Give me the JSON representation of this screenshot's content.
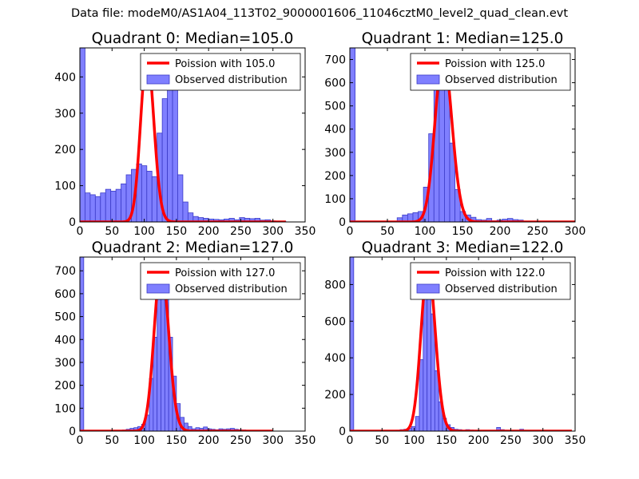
{
  "figure": {
    "title": "Data file: modeM0/AS1A04_113T02_9000001606_11046cztM0_level2_quad_clean.evt"
  },
  "colors": {
    "poisson_line": "#ff0000",
    "histogram_fill": "#7f7fff",
    "histogram_edge": "#3b3bc7",
    "axis": "#000000",
    "background": "#ffffff"
  },
  "chart_data": [
    {
      "type": "bar",
      "title": "Quadrant 0: Median=105.0",
      "xlim": [
        0,
        350
      ],
      "ylim": [
        0,
        480
      ],
      "x_ticks": [
        0,
        50,
        100,
        150,
        200,
        250,
        300,
        350
      ],
      "y_ticks": [
        0,
        100,
        200,
        300,
        400
      ],
      "bin_width": 8,
      "bins": [
        {
          "x": 0,
          "y": 480
        },
        {
          "x": 8,
          "y": 80
        },
        {
          "x": 16,
          "y": 75
        },
        {
          "x": 24,
          "y": 70
        },
        {
          "x": 32,
          "y": 80
        },
        {
          "x": 40,
          "y": 90
        },
        {
          "x": 48,
          "y": 85
        },
        {
          "x": 56,
          "y": 90
        },
        {
          "x": 64,
          "y": 105
        },
        {
          "x": 72,
          "y": 130
        },
        {
          "x": 80,
          "y": 145
        },
        {
          "x": 88,
          "y": 160
        },
        {
          "x": 96,
          "y": 155
        },
        {
          "x": 104,
          "y": 140
        },
        {
          "x": 112,
          "y": 125
        },
        {
          "x": 120,
          "y": 245
        },
        {
          "x": 128,
          "y": 340
        },
        {
          "x": 136,
          "y": 375
        },
        {
          "x": 144,
          "y": 365
        },
        {
          "x": 152,
          "y": 130
        },
        {
          "x": 160,
          "y": 55
        },
        {
          "x": 168,
          "y": 25
        },
        {
          "x": 176,
          "y": 15
        },
        {
          "x": 184,
          "y": 12
        },
        {
          "x": 192,
          "y": 10
        },
        {
          "x": 200,
          "y": 8
        },
        {
          "x": 208,
          "y": 7
        },
        {
          "x": 216,
          "y": 6
        },
        {
          "x": 224,
          "y": 8
        },
        {
          "x": 232,
          "y": 10
        },
        {
          "x": 240,
          "y": 6
        },
        {
          "x": 248,
          "y": 12
        },
        {
          "x": 256,
          "y": 10
        },
        {
          "x": 264,
          "y": 9
        },
        {
          "x": 272,
          "y": 10
        },
        {
          "x": 280,
          "y": 5
        },
        {
          "x": 288,
          "y": 6
        },
        {
          "x": 296,
          "y": 3
        },
        {
          "x": 304,
          "y": 2
        },
        {
          "x": 312,
          "y": 2
        }
      ],
      "poisson": {
        "label": "Poission with 105.0",
        "mu": 105.0,
        "peak": 460,
        "x_range": [
          0,
          320
        ]
      },
      "legend": {
        "position": "top-right",
        "entries": [
          "Poission with 105.0",
          "Observed distribution"
        ]
      }
    },
    {
      "type": "bar",
      "title": "Quadrant 1: Median=125.0",
      "xlim": [
        0,
        300
      ],
      "ylim": [
        0,
        750
      ],
      "x_ticks": [
        0,
        50,
        100,
        150,
        200,
        250,
        300
      ],
      "y_ticks": [
        0,
        100,
        200,
        300,
        400,
        500,
        600,
        700
      ],
      "bin_width": 7,
      "bins": [
        {
          "x": 0,
          "y": 750
        },
        {
          "x": 63,
          "y": 18
        },
        {
          "x": 70,
          "y": 30
        },
        {
          "x": 77,
          "y": 35
        },
        {
          "x": 84,
          "y": 40
        },
        {
          "x": 91,
          "y": 45
        },
        {
          "x": 98,
          "y": 150
        },
        {
          "x": 105,
          "y": 380
        },
        {
          "x": 112,
          "y": 575
        },
        {
          "x": 119,
          "y": 720
        },
        {
          "x": 126,
          "y": 680
        },
        {
          "x": 133,
          "y": 340
        },
        {
          "x": 140,
          "y": 140
        },
        {
          "x": 147,
          "y": 45
        },
        {
          "x": 154,
          "y": 30
        },
        {
          "x": 161,
          "y": 20
        },
        {
          "x": 168,
          "y": 10
        },
        {
          "x": 175,
          "y": 8
        },
        {
          "x": 182,
          "y": 15
        },
        {
          "x": 189,
          "y": 5
        },
        {
          "x": 196,
          "y": 8
        },
        {
          "x": 203,
          "y": 12
        },
        {
          "x": 210,
          "y": 15
        },
        {
          "x": 217,
          "y": 10
        },
        {
          "x": 224,
          "y": 8
        }
      ],
      "poisson": {
        "label": "Poission with 125.0",
        "mu": 125.0,
        "peak": 720,
        "x_range": [
          0,
          300
        ]
      },
      "legend": {
        "position": "top-right",
        "entries": [
          "Poission with 125.0",
          "Observed distribution"
        ]
      }
    },
    {
      "type": "bar",
      "title": "Quadrant 2: Median=127.0",
      "xlim": [
        0,
        350
      ],
      "ylim": [
        0,
        760
      ],
      "x_ticks": [
        0,
        50,
        100,
        150,
        200,
        250,
        300,
        350
      ],
      "y_ticks": [
        0,
        100,
        200,
        300,
        400,
        500,
        600,
        700
      ],
      "bin_width": 6,
      "bins": [
        {
          "x": 0,
          "y": 760
        },
        {
          "x": 66,
          "y": 5
        },
        {
          "x": 72,
          "y": 8
        },
        {
          "x": 78,
          "y": 12
        },
        {
          "x": 84,
          "y": 15
        },
        {
          "x": 90,
          "y": 20
        },
        {
          "x": 96,
          "y": 30
        },
        {
          "x": 102,
          "y": 70
        },
        {
          "x": 108,
          "y": 230
        },
        {
          "x": 114,
          "y": 410
        },
        {
          "x": 120,
          "y": 620
        },
        {
          "x": 126,
          "y": 720
        },
        {
          "x": 132,
          "y": 620
        },
        {
          "x": 138,
          "y": 410
        },
        {
          "x": 144,
          "y": 240
        },
        {
          "x": 150,
          "y": 120
        },
        {
          "x": 156,
          "y": 60
        },
        {
          "x": 162,
          "y": 35
        },
        {
          "x": 168,
          "y": 20
        },
        {
          "x": 174,
          "y": 10
        },
        {
          "x": 180,
          "y": 15
        },
        {
          "x": 186,
          "y": 12
        },
        {
          "x": 192,
          "y": 18
        },
        {
          "x": 198,
          "y": 10
        },
        {
          "x": 204,
          "y": 8
        },
        {
          "x": 210,
          "y": 6
        },
        {
          "x": 216,
          "y": 10
        },
        {
          "x": 222,
          "y": 8
        },
        {
          "x": 228,
          "y": 10
        },
        {
          "x": 234,
          "y": 12
        },
        {
          "x": 240,
          "y": 8
        },
        {
          "x": 246,
          "y": 6
        },
        {
          "x": 252,
          "y": 5
        }
      ],
      "poisson": {
        "label": "Poission with 127.0",
        "mu": 127.0,
        "peak": 720,
        "x_range": [
          0,
          300
        ]
      },
      "legend": {
        "position": "top-right",
        "entries": [
          "Poission with 127.0",
          "Observed distribution"
        ]
      }
    },
    {
      "type": "bar",
      "title": "Quadrant 3: Median=122.0",
      "xlim": [
        0,
        350
      ],
      "ylim": [
        0,
        950
      ],
      "x_ticks": [
        0,
        50,
        100,
        150,
        200,
        250,
        300,
        350
      ],
      "y_ticks": [
        0,
        200,
        400,
        600,
        800
      ],
      "bin_width": 6,
      "bins": [
        {
          "x": 0,
          "y": 950
        },
        {
          "x": 72,
          "y": 5
        },
        {
          "x": 78,
          "y": 8
        },
        {
          "x": 84,
          "y": 10
        },
        {
          "x": 90,
          "y": 15
        },
        {
          "x": 96,
          "y": 25
        },
        {
          "x": 102,
          "y": 80
        },
        {
          "x": 108,
          "y": 390
        },
        {
          "x": 114,
          "y": 820
        },
        {
          "x": 120,
          "y": 900
        },
        {
          "x": 126,
          "y": 640
        },
        {
          "x": 132,
          "y": 330
        },
        {
          "x": 138,
          "y": 160
        },
        {
          "x": 144,
          "y": 70
        },
        {
          "x": 150,
          "y": 35
        },
        {
          "x": 156,
          "y": 20
        },
        {
          "x": 162,
          "y": 10
        },
        {
          "x": 168,
          "y": 8
        },
        {
          "x": 174,
          "y": 5
        },
        {
          "x": 180,
          "y": 8
        },
        {
          "x": 186,
          "y": 6
        },
        {
          "x": 192,
          "y": 5
        },
        {
          "x": 228,
          "y": 20
        },
        {
          "x": 234,
          "y": 8
        },
        {
          "x": 264,
          "y": 10
        }
      ],
      "poisson": {
        "label": "Poission with 122.0",
        "mu": 122.0,
        "peak": 900,
        "x_range": [
          0,
          345
        ]
      },
      "legend": {
        "position": "top-right",
        "entries": [
          "Poission with 122.0",
          "Observed distribution"
        ]
      }
    }
  ]
}
